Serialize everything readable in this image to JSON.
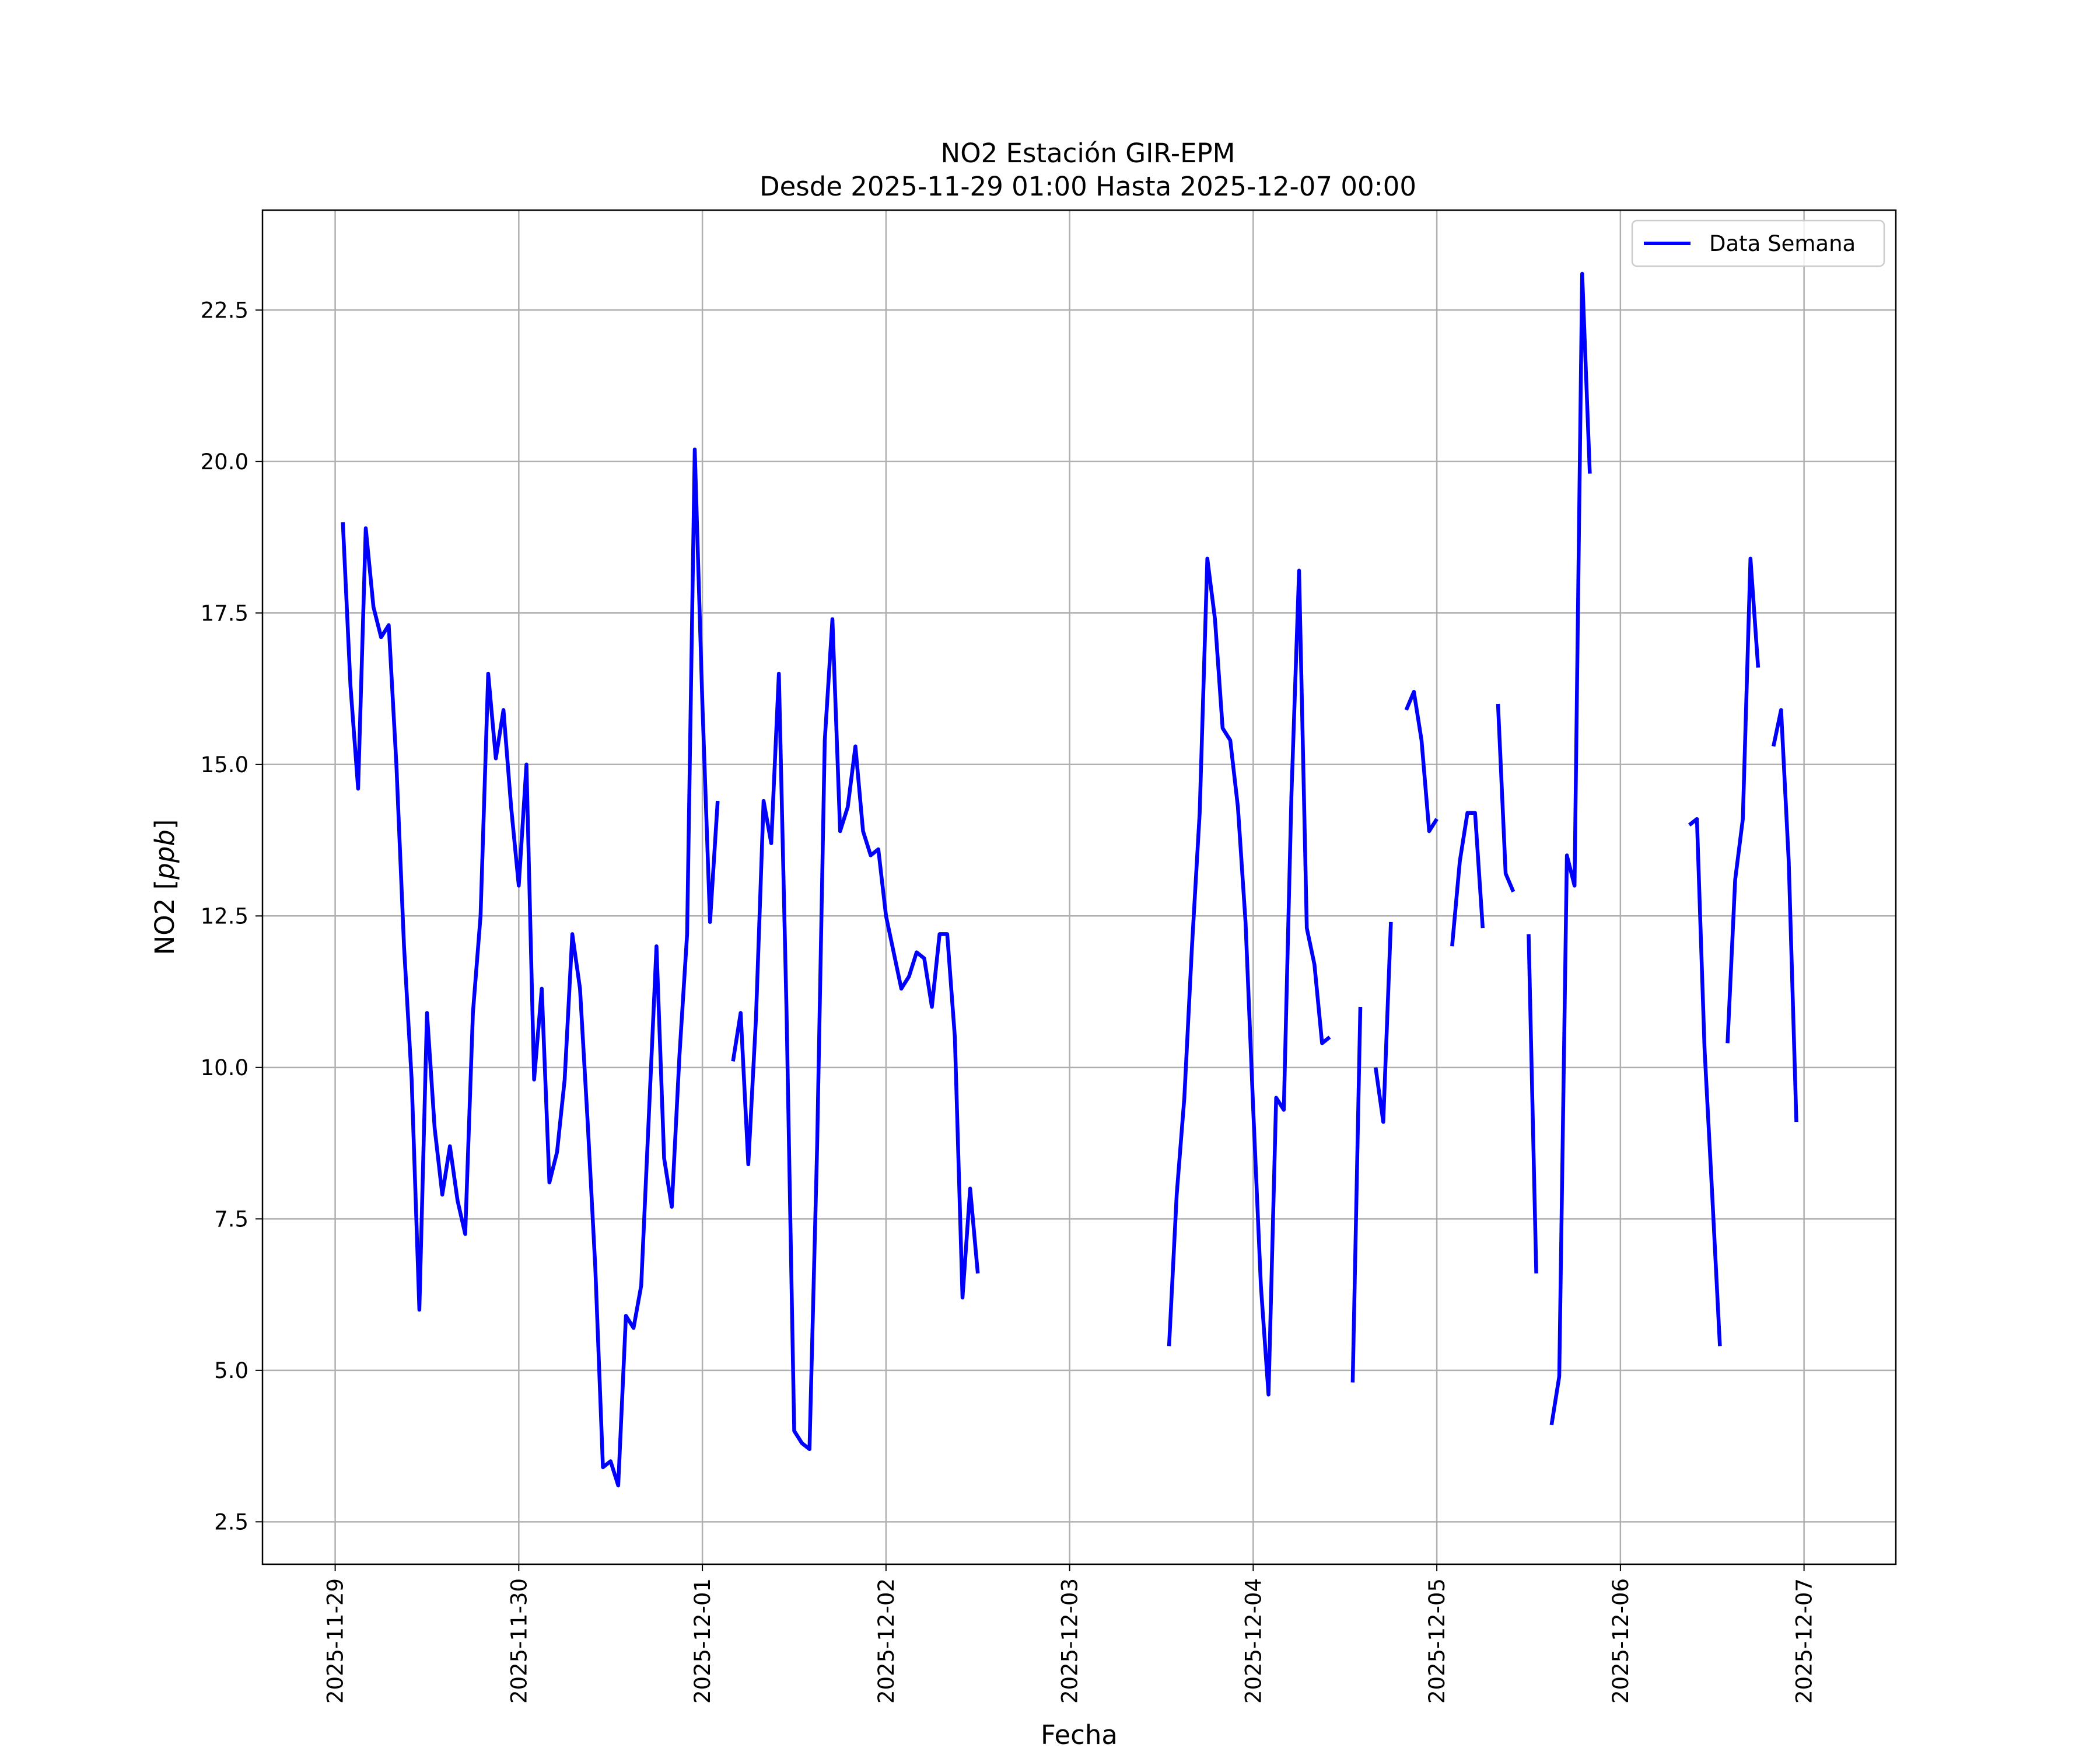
{
  "chart_data": {
    "type": "line",
    "title": "NO2 Estación GIR-EPM",
    "subtitle": "Desde 2025-11-29 01:00 Hasta 2025-12-07 00:00",
    "xlabel": "Fecha",
    "ylabel_prefix": "NO2 [",
    "ylabel_unit": "ppb",
    "ylabel_suffix": "]",
    "xlim": [
      "2025-11-28 14:30",
      "2025-12-07 12:00"
    ],
    "ylim": [
      1.8,
      24.15
    ],
    "x_ticks": [
      "2025-11-29",
      "2025-11-30",
      "2025-12-01",
      "2025-12-02",
      "2025-12-03",
      "2025-12-04",
      "2025-12-05",
      "2025-12-06",
      "2025-12-07"
    ],
    "y_ticks": [
      "2.5",
      "5.0",
      "7.5",
      "10.0",
      "12.5",
      "15.0",
      "17.5",
      "20.0",
      "22.5"
    ],
    "grid": true,
    "legend_position": "top-right",
    "colors": {
      "series": "#0000ff",
      "grid": "#b0b0b0",
      "axes": "#000000"
    },
    "series": [
      {
        "name": "Data Semana",
        "segments": [
          [
            [
              "2025-11-29 01:00",
              19.0
            ],
            [
              "2025-11-29 02:00",
              16.3
            ],
            [
              "2025-11-29 03:00",
              14.6
            ],
            [
              "2025-11-29 04:00",
              18.9
            ],
            [
              "2025-11-29 05:00",
              17.6
            ],
            [
              "2025-11-29 06:00",
              17.1
            ],
            [
              "2025-11-29 07:00",
              17.3
            ],
            [
              "2025-11-29 08:00",
              15.0
            ],
            [
              "2025-11-29 09:00",
              12.0
            ],
            [
              "2025-11-29 10:00",
              9.8
            ],
            [
              "2025-11-29 11:00",
              6.0
            ],
            [
              "2025-11-29 12:00",
              10.9
            ],
            [
              "2025-11-29 13:00",
              9.0
            ],
            [
              "2025-11-29 14:00",
              7.9
            ],
            [
              "2025-11-29 15:00",
              8.7
            ],
            [
              "2025-11-29 16:00",
              7.8
            ],
            [
              "2025-11-29 17:00",
              7.25
            ],
            [
              "2025-11-29 18:00",
              10.9
            ],
            [
              "2025-11-29 19:00",
              12.5
            ],
            [
              "2025-11-29 20:00",
              16.5
            ],
            [
              "2025-11-29 21:00",
              15.1
            ],
            [
              "2025-11-29 22:00",
              15.9
            ],
            [
              "2025-11-29 23:00",
              14.3
            ],
            [
              "2025-11-30 00:00",
              13.0
            ],
            [
              "2025-11-30 01:00",
              15.0
            ],
            [
              "2025-11-30 02:00",
              9.8
            ],
            [
              "2025-11-30 03:00",
              11.3
            ],
            [
              "2025-11-30 04:00",
              8.1
            ],
            [
              "2025-11-30 05:00",
              8.6
            ],
            [
              "2025-11-30 06:00",
              9.8
            ],
            [
              "2025-11-30 07:00",
              12.2
            ],
            [
              "2025-11-30 08:00",
              11.3
            ],
            [
              "2025-11-30 09:00",
              9.1
            ],
            [
              "2025-11-30 10:00",
              6.7
            ],
            [
              "2025-11-30 11:00",
              3.4
            ],
            [
              "2025-11-30 12:00",
              3.5
            ],
            [
              "2025-11-30 13:00",
              3.1
            ],
            [
              "2025-11-30 14:00",
              5.9
            ],
            [
              "2025-11-30 15:00",
              5.7
            ],
            [
              "2025-11-30 16:00",
              6.4
            ],
            [
              "2025-11-30 17:00",
              9.2
            ],
            [
              "2025-11-30 18:00",
              12.0
            ],
            [
              "2025-11-30 19:00",
              8.5
            ],
            [
              "2025-11-30 20:00",
              7.7
            ],
            [
              "2025-11-30 21:00",
              10.2
            ],
            [
              "2025-11-30 22:00",
              12.2
            ],
            [
              "2025-11-30 23:00",
              20.2
            ],
            [
              "2025-12-01 00:00",
              16.0
            ],
            [
              "2025-12-01 01:00",
              12.4
            ],
            [
              "2025-12-01 02:00",
              14.4
            ]
          ],
          [
            [
              "2025-12-01 04:00",
              10.1
            ],
            [
              "2025-12-01 05:00",
              10.9
            ],
            [
              "2025-12-01 06:00",
              8.4
            ],
            [
              "2025-12-01 07:00",
              10.8
            ],
            [
              "2025-12-01 08:00",
              14.4
            ],
            [
              "2025-12-01 09:00",
              13.7
            ],
            [
              "2025-12-01 10:00",
              16.5
            ],
            [
              "2025-12-01 11:00",
              10.9
            ],
            [
              "2025-12-01 12:00",
              4.0
            ],
            [
              "2025-12-01 13:00",
              3.8
            ],
            [
              "2025-12-01 14:00",
              3.7
            ],
            [
              "2025-12-01 15:00",
              8.7
            ],
            [
              "2025-12-01 16:00",
              15.4
            ],
            [
              "2025-12-01 17:00",
              17.4
            ],
            [
              "2025-12-01 18:00",
              13.9
            ],
            [
              "2025-12-01 19:00",
              14.3
            ],
            [
              "2025-12-01 20:00",
              15.3
            ],
            [
              "2025-12-01 21:00",
              13.9
            ],
            [
              "2025-12-01 22:00",
              13.5
            ],
            [
              "2025-12-01 23:00",
              13.6
            ],
            [
              "2025-12-02 00:00",
              12.5
            ],
            [
              "2025-12-02 01:00",
              11.9
            ],
            [
              "2025-12-02 02:00",
              11.3
            ],
            [
              "2025-12-02 03:00",
              11.5
            ],
            [
              "2025-12-02 04:00",
              11.9
            ],
            [
              "2025-12-02 05:00",
              11.8
            ],
            [
              "2025-12-02 06:00",
              11.0
            ],
            [
              "2025-12-02 07:00",
              12.2
            ],
            [
              "2025-12-02 08:00",
              12.2
            ],
            [
              "2025-12-02 09:00",
              10.5
            ],
            [
              "2025-12-02 10:00",
              6.2
            ],
            [
              "2025-12-02 11:00",
              8.0
            ],
            [
              "2025-12-02 12:00",
              6.6
            ]
          ],
          [
            [
              "2025-12-03 13:00",
              5.4
            ],
            [
              "2025-12-03 14:00",
              7.9
            ],
            [
              "2025-12-03 15:00",
              9.5
            ],
            [
              "2025-12-03 16:00",
              12.0
            ],
            [
              "2025-12-03 17:00",
              14.2
            ],
            [
              "2025-12-03 18:00",
              18.4
            ],
            [
              "2025-12-03 19:00",
              17.4
            ],
            [
              "2025-12-03 20:00",
              15.6
            ],
            [
              "2025-12-03 21:00",
              15.4
            ],
            [
              "2025-12-03 22:00",
              14.3
            ],
            [
              "2025-12-03 23:00",
              12.4
            ],
            [
              "2025-12-04 00:00",
              9.3
            ],
            [
              "2025-12-04 01:00",
              6.4
            ],
            [
              "2025-12-04 02:00",
              4.6
            ],
            [
              "2025-12-04 03:00",
              9.5
            ],
            [
              "2025-12-04 04:00",
              9.3
            ],
            [
              "2025-12-04 05:00",
              14.5
            ],
            [
              "2025-12-04 06:00",
              18.2
            ],
            [
              "2025-12-04 07:00",
              12.3
            ],
            [
              "2025-12-04 08:00",
              11.7
            ],
            [
              "2025-12-04 09:00",
              10.4
            ],
            [
              "2025-12-04 10:00",
              10.5
            ]
          ],
          [
            [
              "2025-12-04 13:00",
              4.8
            ],
            [
              "2025-12-04 14:00",
              11.0
            ]
          ],
          [
            [
              "2025-12-04 16:00",
              10.0
            ],
            [
              "2025-12-04 17:00",
              9.1
            ],
            [
              "2025-12-04 18:00",
              12.4
            ]
          ],
          [
            [
              "2025-12-04 20:00",
              15.9
            ],
            [
              "2025-12-04 21:00",
              16.2
            ],
            [
              "2025-12-04 22:00",
              15.4
            ],
            [
              "2025-12-04 23:00",
              13.9
            ],
            [
              "2025-12-05 00:00",
              14.1
            ]
          ],
          [
            [
              "2025-12-05 02:00",
              12.0
            ],
            [
              "2025-12-05 03:00",
              13.4
            ],
            [
              "2025-12-05 04:00",
              14.2
            ],
            [
              "2025-12-05 05:00",
              14.2
            ],
            [
              "2025-12-05 06:00",
              12.3
            ]
          ],
          [
            [
              "2025-12-05 08:00",
              16.0
            ],
            [
              "2025-12-05 09:00",
              13.2
            ],
            [
              "2025-12-05 10:00",
              12.9
            ]
          ],
          [
            [
              "2025-12-05 12:00",
              12.2
            ],
            [
              "2025-12-05 13:00",
              6.6
            ]
          ],
          [
            [
              "2025-12-05 15:00",
              4.1
            ],
            [
              "2025-12-05 16:00",
              4.9
            ],
            [
              "2025-12-05 17:00",
              13.5
            ],
            [
              "2025-12-05 18:00",
              13.0
            ],
            [
              "2025-12-05 19:00",
              23.1
            ],
            [
              "2025-12-05 20:00",
              19.8
            ]
          ],
          [
            [
              "2025-12-06 09:00",
              14.0
            ],
            [
              "2025-12-06 10:00",
              14.1
            ],
            [
              "2025-12-06 11:00",
              10.3
            ],
            [
              "2025-12-06 12:00",
              7.9
            ],
            [
              "2025-12-06 13:00",
              5.4
            ]
          ],
          [
            [
              "2025-12-06 14:00",
              10.4
            ],
            [
              "2025-12-06 15:00",
              13.1
            ],
            [
              "2025-12-06 16:00",
              14.1
            ],
            [
              "2025-12-06 17:00",
              18.4
            ],
            [
              "2025-12-06 18:00",
              16.6
            ]
          ],
          [
            [
              "2025-12-06 20:00",
              15.3
            ],
            [
              "2025-12-06 21:00",
              15.9
            ],
            [
              "2025-12-06 22:00",
              13.4
            ],
            [
              "2025-12-06 23:00",
              9.1
            ]
          ]
        ]
      }
    ]
  }
}
